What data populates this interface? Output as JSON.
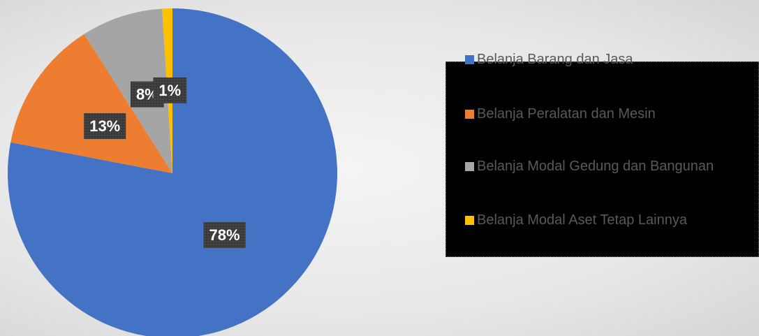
{
  "chart_data": {
    "type": "pie",
    "categories": [
      "Belanja Barang dan Jasa",
      "Belanja Peralatan dan Mesin",
      "Belanja Modal Gedung dan Bangunan",
      "Belanja Modal Aset Tetap Lainnya"
    ],
    "values": [
      78,
      13,
      8,
      1
    ],
    "value_labels": [
      "78%",
      "13%",
      "8%",
      "1%"
    ],
    "colors": [
      "#4472c4",
      "#ed7d31",
      "#a5a5a5",
      "#ffc000"
    ],
    "legend": "right"
  }
}
